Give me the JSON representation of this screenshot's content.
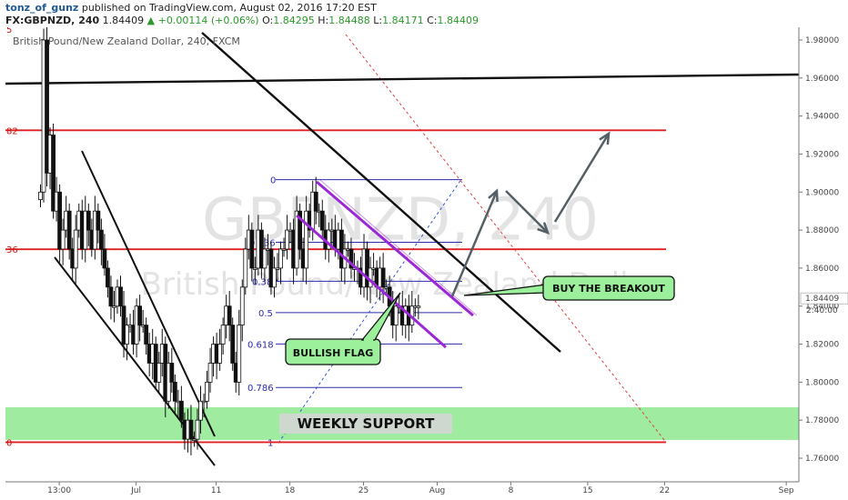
{
  "header": {
    "author": "tonz_of_gunz",
    "published": "published on TradingView.com, August 02, 2016 17:20 EST",
    "symbol": "FX:GBPNZD, 240",
    "last": "1.84409",
    "change": "+0.00114 (+0.06%)",
    "o_label": "O:",
    "o_value": "1.84295",
    "h_label": "H:",
    "h_value": "1.84488",
    "l_label": "L:",
    "l_value": "1.84171",
    "c_label": "C:",
    "c_value": "1.84409"
  },
  "colors": {
    "red_level": "#e02020",
    "fib": "#2b2bb0",
    "channel": "#9b28d6",
    "trend": "#111111",
    "support": "#8ee88e",
    "callout": "#9cf09c",
    "arrow": "#555f66",
    "dashed_red": "#e04040",
    "dashed_blue": "#3355cc"
  },
  "chart_data": {
    "type": "candlestick",
    "title": "British Pound/New Zealand Dollar, 240, FXCM",
    "watermark_top": "GBPNZD, 240",
    "watermark_bottom": "British Pound/New Zealand Dollar",
    "ylim": [
      1.75,
      1.99
    ],
    "y_ticks": [
      "1.98000",
      "1.96000",
      "1.94000",
      "1.92000",
      "1.90000",
      "1.88000",
      "1.86000",
      "1.84000",
      "1.82000",
      "1.80000",
      "1.78000",
      "1.76000"
    ],
    "x_ticks": [
      {
        "label": "13:00",
        "t": 6
      },
      {
        "label": "Jul",
        "t": 30
      },
      {
        "label": "11",
        "t": 55
      },
      {
        "label": "18",
        "t": 78
      },
      {
        "label": "25",
        "t": 101
      },
      {
        "label": "Aug",
        "t": 124
      },
      {
        "label": "8",
        "t": 147
      },
      {
        "label": "15",
        "t": 171
      },
      {
        "label": "22",
        "t": 195
      },
      {
        "label": "Sep",
        "t": 233
      }
    ],
    "price_label": "1.84409",
    "time_label": "2:40:00",
    "left_level_labels": [
      "5",
      "82",
      "36",
      "0"
    ],
    "fib_labels": [
      "0",
      "0.236",
      "0.382",
      "0.5",
      "0.618",
      "0.786",
      "1"
    ],
    "fib_levels": [
      1.9065,
      1.8736,
      1.8531,
      1.8366,
      1.8201,
      1.7972,
      1.7684
    ],
    "red_levels": [
      1.9325,
      1.8699,
      1.7684
    ],
    "support_zone": [
      1.7696,
      1.7868
    ],
    "annotations": [
      "WEEKLY SUPPORT",
      "BULLISH FLAG",
      "BUY THE BREAKOUT"
    ],
    "closes": [
      1.9,
      1.98,
      1.91,
      1.93,
      1.89,
      1.9,
      1.87,
      1.88,
      1.89,
      1.87,
      1.86,
      1.88,
      1.89,
      1.87,
      1.89,
      1.88,
      1.87,
      1.89,
      1.88,
      1.87,
      1.86,
      1.85,
      1.84,
      1.84,
      1.85,
      1.84,
      1.82,
      1.83,
      1.83,
      1.82,
      1.84,
      1.83,
      1.83,
      1.82,
      1.81,
      1.82,
      1.8,
      1.81,
      1.82,
      1.79,
      1.81,
      1.8,
      1.79,
      1.79,
      1.78,
      1.77,
      1.78,
      1.77,
      1.77,
      1.78,
      1.79,
      1.79,
      1.8,
      1.81,
      1.82,
      1.81,
      1.82,
      1.83,
      1.84,
      1.83,
      1.81,
      1.8,
      1.83,
      1.85,
      1.87,
      1.88,
      1.86,
      1.86,
      1.88,
      1.86,
      1.87,
      1.87,
      1.85,
      1.86,
      1.86,
      1.87,
      1.87,
      1.88,
      1.88,
      1.86,
      1.89,
      1.87,
      1.86,
      1.89,
      1.88,
      1.9,
      1.89,
      1.89,
      1.88,
      1.87,
      1.88,
      1.88,
      1.87,
      1.88,
      1.86,
      1.87,
      1.87,
      1.86,
      1.86,
      1.86,
      1.85,
      1.87,
      1.85,
      1.86,
      1.86,
      1.85,
      1.86,
      1.85,
      1.85,
      1.84,
      1.83,
      1.84,
      1.84,
      1.83,
      1.84,
      1.83,
      1.84,
      1.84,
      1.84
    ]
  }
}
